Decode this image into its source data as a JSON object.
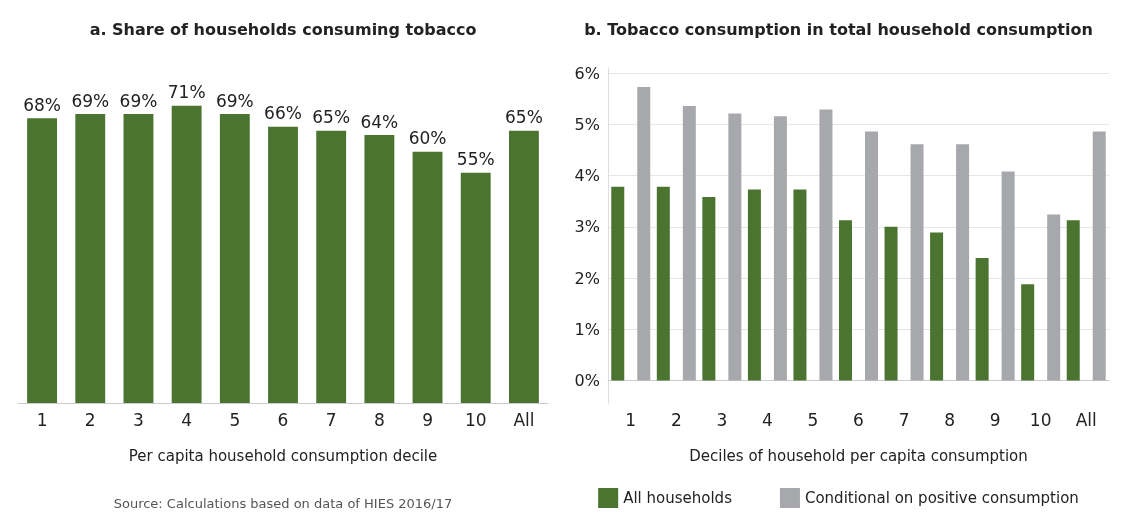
{
  "chart_data": [
    {
      "type": "bar",
      "title": "a. Share of households consuming tobacco",
      "xlabel": "Per capita household consumption decile",
      "categories": [
        "1",
        "2",
        "3",
        "4",
        "5",
        "6",
        "7",
        "8",
        "9",
        "10",
        "All"
      ],
      "values": [
        68,
        69,
        69,
        71,
        69,
        66,
        65,
        64,
        60,
        55,
        65
      ],
      "value_labels": [
        "68%",
        "69%",
        "69%",
        "71%",
        "69%",
        "66%",
        "65%",
        "64%",
        "60%",
        "55%",
        "65%"
      ],
      "color": "#4a7430",
      "grid": false,
      "legend": false,
      "annotations": [
        "Source: Calculations based on data of HIES 2016/17"
      ]
    },
    {
      "type": "bar",
      "title": "b. Tobacco consumption in total household consumption",
      "xlabel": "Deciles of household per capita consumption",
      "categories": [
        "1",
        "2",
        "3",
        "4",
        "5",
        "6",
        "7",
        "8",
        "9",
        "10",
        "All"
      ],
      "series": [
        {
          "name": "All households",
          "color": "#4a7430",
          "values": [
            3.78,
            3.78,
            3.58,
            3.73,
            3.73,
            3.13,
            3.0,
            2.89,
            2.39,
            1.88,
            3.13
          ]
        },
        {
          "name": "Conditional on positive consumption",
          "color": "#a7a8ab",
          "values": [
            5.73,
            5.36,
            5.21,
            5.16,
            5.29,
            4.86,
            4.61,
            4.61,
            4.08,
            3.24,
            4.86
          ]
        }
      ],
      "ylim": [
        -0.44,
        6.1
      ],
      "yticks": [
        {
          "value": 0,
          "label": "0%"
        },
        {
          "value": 1,
          "label": "1%"
        },
        {
          "value": 2,
          "label": "2%"
        },
        {
          "value": 3,
          "label": "3%"
        },
        {
          "value": 4,
          "label": "4%"
        },
        {
          "value": 5,
          "label": "5%"
        },
        {
          "value": 6,
          "label": "6%"
        }
      ],
      "grid": "y",
      "legend": "bottom"
    }
  ]
}
